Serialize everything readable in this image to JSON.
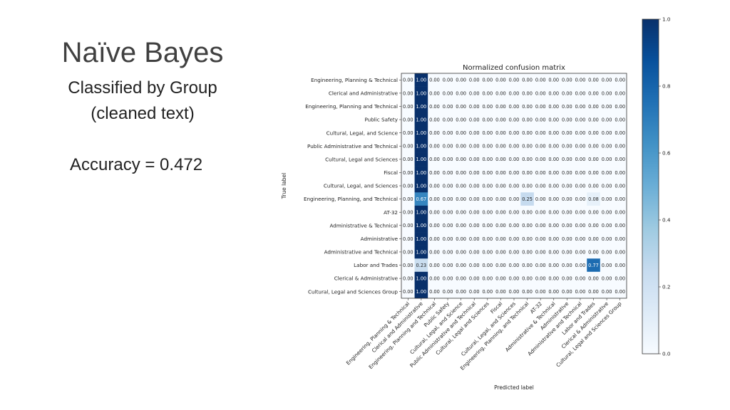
{
  "slide": {
    "title": "Naïve Bayes",
    "subtitle_line1": "Classified by Group",
    "subtitle_line2": "(cleaned text)",
    "accuracy_text": "Accuracy = 0.472"
  },
  "chart_data": {
    "type": "heatmap",
    "title": "Normalized confusion matrix",
    "xlabel": "Predicted label",
    "ylabel": "True label",
    "colormap": "Blues",
    "colors": {
      "low": "#f7fbff",
      "high": "#08306b"
    },
    "colorbar": {
      "min": 0.0,
      "max": 1.0,
      "ticks": [
        "0.0",
        "0.2",
        "0.4",
        "0.6",
        "0.8",
        "1.0"
      ]
    },
    "row_labels": [
      "Engineering, Planning & Technical",
      "Clerical and Administrative",
      "Engineering, Planning and Technical",
      "Public Safety",
      "Cultural, Legal, and Science",
      "Public Administrative and Technical",
      "Cultural, Legal and Sciences",
      "Fiscal",
      "Cultural, Legal, and Sciences",
      "Engineering, Planning, and Technical",
      "AT-32",
      "Administrative & Technical",
      "Administrative",
      "Administrative and Technical",
      "Labor and Trades",
      "Clerical & Administrative",
      "Cultural, Legal and Sciences Group"
    ],
    "col_labels": [
      "Engineering, Planning & Technical",
      "Clerical and Administrative",
      "Engineering, Planning and Technical",
      "Public Safety",
      "Cultural, Legal, and Science",
      "Public Administrative and Technical",
      "Cultural, Legal and Sciences",
      "Fiscal",
      "Cultural, Legal, and Sciences",
      "Engineering, Planning, and Technical",
      "AT-32",
      "Administrative & Technical",
      "Administrative",
      "Administrative and Technical",
      "Labor and Trades",
      "Clerical & Administrative",
      "Cultural, Legal and Sciences Group"
    ],
    "cell_labels": [
      [
        "0.00",
        "1.00",
        "0.00",
        "0.00",
        "0.00",
        "0.00",
        "0.00",
        "0.00",
        "0.00",
        "0.00",
        "0.00",
        "0.00",
        "0.00",
        "0.00",
        "0.00",
        "0.00",
        "0.00"
      ],
      [
        "0.00",
        "1.00",
        "0.00",
        "0.00",
        "0.00",
        "0.00",
        "0.00",
        "0.00",
        "0.00",
        "0.00",
        "0.00",
        "0.00",
        "0.00",
        "0.00",
        "0.00",
        "0.00",
        "0.00"
      ],
      [
        "0.00",
        "1.00",
        "0.00",
        "0.00",
        "0.00",
        "0.00",
        "0.00",
        "0.00",
        "0.00",
        "0.00",
        "0.00",
        "0.00",
        "0.00",
        "0.00",
        "0.00",
        "0.00",
        "0.00"
      ],
      [
        "0.00",
        "1.00",
        "0.00",
        "0.00",
        "0.00",
        "0.00",
        "0.00",
        "0.00",
        "0.00",
        "0.00",
        "0.00",
        "0.00",
        "0.00",
        "0.00",
        "0.00",
        "0.00",
        "0.00"
      ],
      [
        "0.00",
        "1.00",
        "0.00",
        "0.00",
        "0.00",
        "0.00",
        "0.00",
        "0.00",
        "0.00",
        "0.00",
        "0.00",
        "0.00",
        "0.00",
        "0.00",
        "0.00",
        "0.00",
        "0.00"
      ],
      [
        "0.00",
        "1.00",
        "0.00",
        "0.00",
        "0.00",
        "0.00",
        "0.00",
        "0.00",
        "0.00",
        "0.00",
        "0.00",
        "0.00",
        "0.00",
        "0.00",
        "0.00",
        "0.00",
        "0.00"
      ],
      [
        "0.00",
        "1.00",
        "0.00",
        "0.00",
        "0.00",
        "0.00",
        "0.00",
        "0.00",
        "0.00",
        "0.00",
        "0.00",
        "0.00",
        "0.00",
        "0.00",
        "0.00",
        "0.00",
        "0.00"
      ],
      [
        "0.00",
        "1.00",
        "0.00",
        "0.00",
        "0.00",
        "0.00",
        "0.00",
        "0.00",
        "0.00",
        "0.00",
        "0.00",
        "0.00",
        "0.00",
        "0.00",
        "0.00",
        "0.00",
        "0.00"
      ],
      [
        "0.00",
        "1.00",
        "0.00",
        "0.00",
        "0.00",
        "0.00",
        "0.00",
        "0.00",
        "0.00",
        "0.00",
        "0.00",
        "0.00",
        "0.00",
        "0.00",
        "0.00",
        "0.00",
        "0.00"
      ],
      [
        "0.00",
        "0.67",
        "0.00",
        "0.00",
        "0.00",
        "0.00",
        "0.00",
        "0.00",
        "0.00",
        "0.25",
        "0.00",
        "0.00",
        "0.00",
        "0.00",
        "0.08",
        "0.00",
        "0.00"
      ],
      [
        "0.00",
        "1.00",
        "0.00",
        "0.00",
        "0.00",
        "0.00",
        "0.00",
        "0.00",
        "0.00",
        "0.00",
        "0.00",
        "0.00",
        "0.00",
        "0.00",
        "0.00",
        "0.00",
        "0.00"
      ],
      [
        "0.00",
        "1.00",
        "0.00",
        "0.00",
        "0.00",
        "0.00",
        "0.00",
        "0.00",
        "0.00",
        "0.00",
        "0.00",
        "0.00",
        "0.00",
        "0.00",
        "0.00",
        "0.00",
        "0.00"
      ],
      [
        "0.00",
        "1.00",
        "0.00",
        "0.00",
        "0.00",
        "0.00",
        "0.00",
        "0.00",
        "0.00",
        "0.00",
        "0.00",
        "0.00",
        "0.00",
        "0.00",
        "0.00",
        "0.00",
        "0.00"
      ],
      [
        "0.00",
        "1.00",
        "0.00",
        "0.00",
        "0.00",
        "0.00",
        "0.00",
        "0.00",
        "0.00",
        "0.00",
        "0.00",
        "0.00",
        "0.00",
        "0.00",
        "0.00",
        "0.00",
        "0.00"
      ],
      [
        "0.00",
        "0.23",
        "0.00",
        "0.00",
        "0.00",
        "0.00",
        "0.00",
        "0.00",
        "0.00",
        "0.00",
        "0.00",
        "0.00",
        "0.00",
        "0.00",
        "0.77",
        "0.00",
        "0.00"
      ],
      [
        "0.00",
        "1.00",
        "0.00",
        "0.00",
        "0.00",
        "0.00",
        "0.00",
        "0.00",
        "0.00",
        "0.00",
        "0.00",
        "0.00",
        "0.00",
        "0.00",
        "0.00",
        "0.00",
        "0.00"
      ],
      [
        "0.00",
        "1.00",
        "0.00",
        "0.00",
        "0.00",
        "0.00",
        "0.00",
        "0.00",
        "0.00",
        "0.00",
        "0.00",
        "0.00",
        "0.00",
        "0.00",
        "0.00",
        "0.00",
        "0.00"
      ]
    ]
  }
}
